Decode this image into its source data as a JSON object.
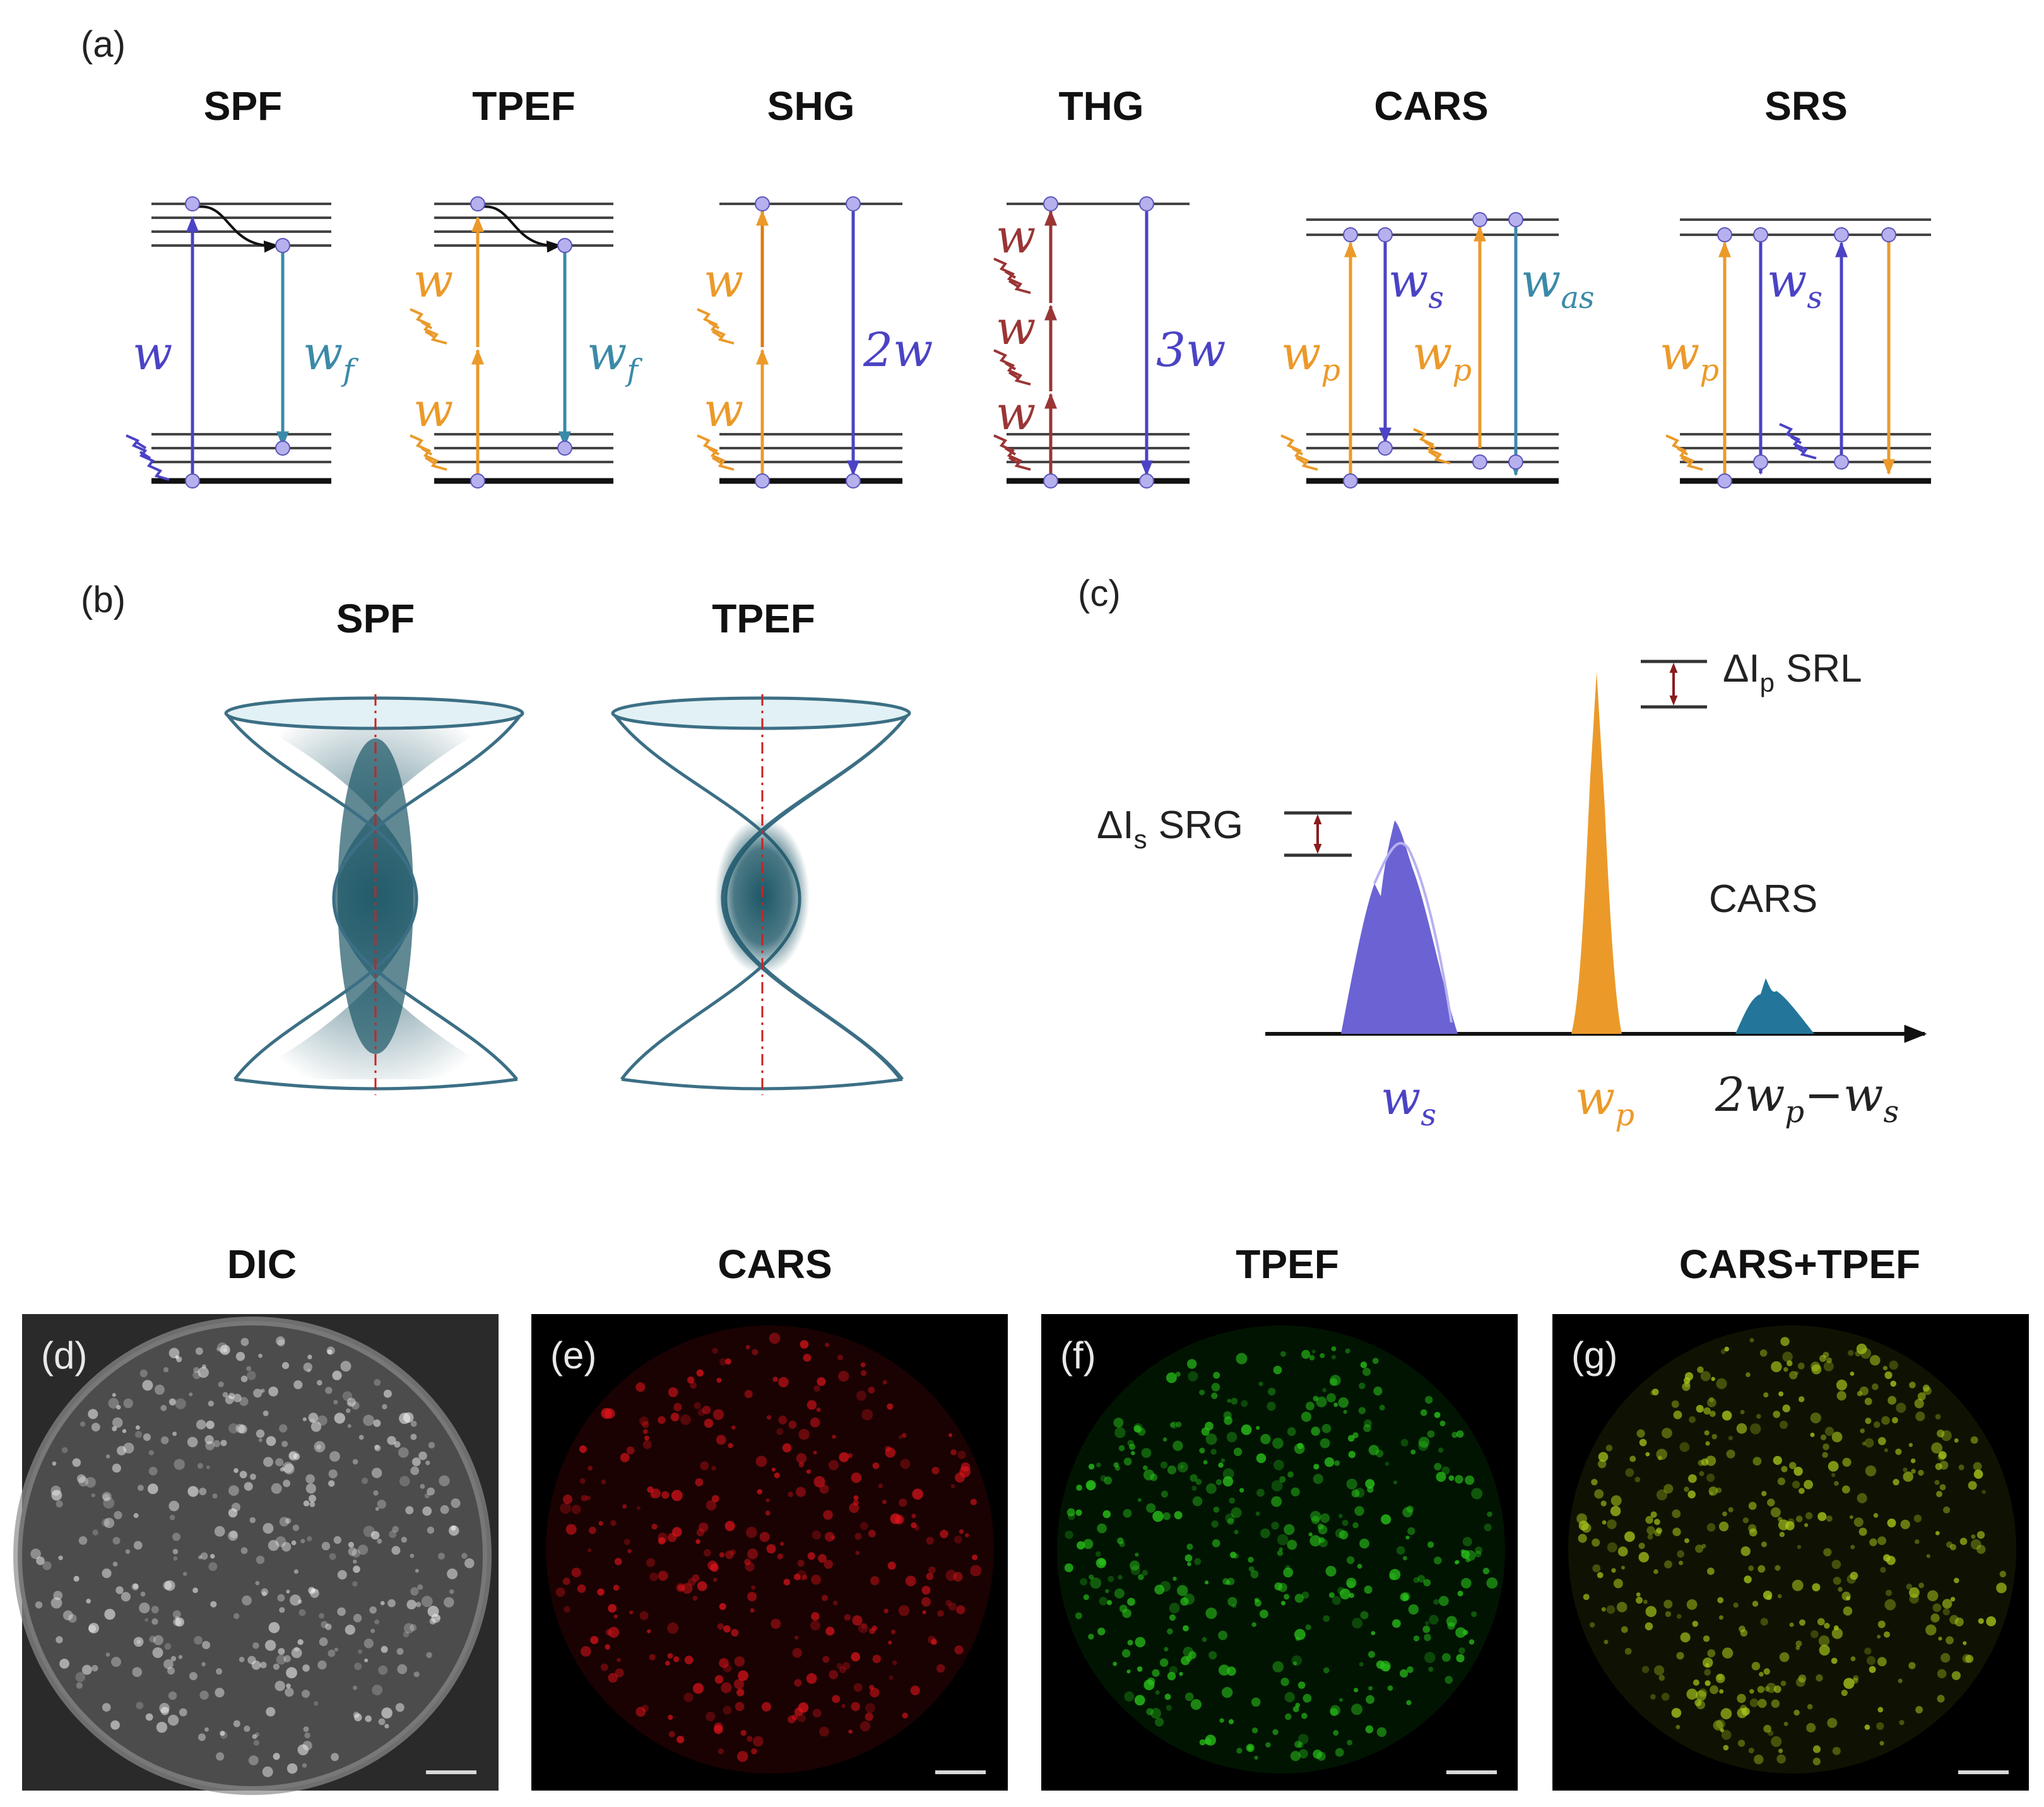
{
  "colors": {
    "blue": "#4b43c4",
    "teal": "#3b8aa8",
    "orange": "#eb9a2a",
    "dark_red": "#9b3535",
    "focus": "#1d5766"
  },
  "panel_labels": {
    "a": "(a)",
    "b": "(b)",
    "c": "(c)",
    "d": "(d)",
    "e": "(e)",
    "f": "(f)",
    "g": "(g)"
  },
  "panel_a": {
    "titles": [
      "SPF",
      "TPEF",
      "SHG",
      "THG",
      "CARS",
      "SRS"
    ],
    "spf": {
      "excitation": "w",
      "emission": "w",
      "emission_sub": "f"
    },
    "tpef": {
      "photon_upper": "w",
      "photon_lower": "w",
      "emission": "w",
      "emission_sub": "f"
    },
    "shg": {
      "photon_upper": "w",
      "photon_lower": "w",
      "emission": "2w"
    },
    "thg": {
      "photon_1": "w",
      "photon_2": "w",
      "photon_3": "w",
      "emission": "3w"
    },
    "cars": {
      "pump_1": "w",
      "pump_1_sub": "p",
      "stokes": "w",
      "stokes_sub": "s",
      "pump_2": "w",
      "pump_2_sub": "p",
      "anti_stokes": "w",
      "anti_stokes_sub": "as"
    },
    "srs": {
      "pump": "w",
      "pump_sub": "p",
      "stokes": "w",
      "stokes_sub": "s"
    }
  },
  "panel_b": {
    "titles": [
      "SPF",
      "TPEF"
    ]
  },
  "panel_c": {
    "srl_label": "ΔI",
    "srl_sub": "p",
    "srl_suffix": "SRL",
    "srg_label": "ΔI",
    "srg_sub": "s",
    "srg_suffix": "SRG",
    "cars_label": "CARS",
    "axis_stokes": "w",
    "axis_stokes_sub": "s",
    "axis_pump": "w",
    "axis_pump_sub": "p",
    "axis_cars": "2w",
    "axis_cars_sub_p": "p",
    "axis_cars_minus": "−w",
    "axis_cars_sub_s": "s"
  },
  "micrographs": [
    {
      "title": "DIC",
      "tag": "(d)",
      "tint": "#ffffff"
    },
    {
      "title": "CARS",
      "tag": "(e)",
      "tint": "#e0141c"
    },
    {
      "title": "TPEF",
      "tag": "(f)",
      "tint": "#29c21a"
    },
    {
      "title": "CARS+TPEF",
      "tag": "(g)",
      "tint": "#a8c81c"
    }
  ]
}
